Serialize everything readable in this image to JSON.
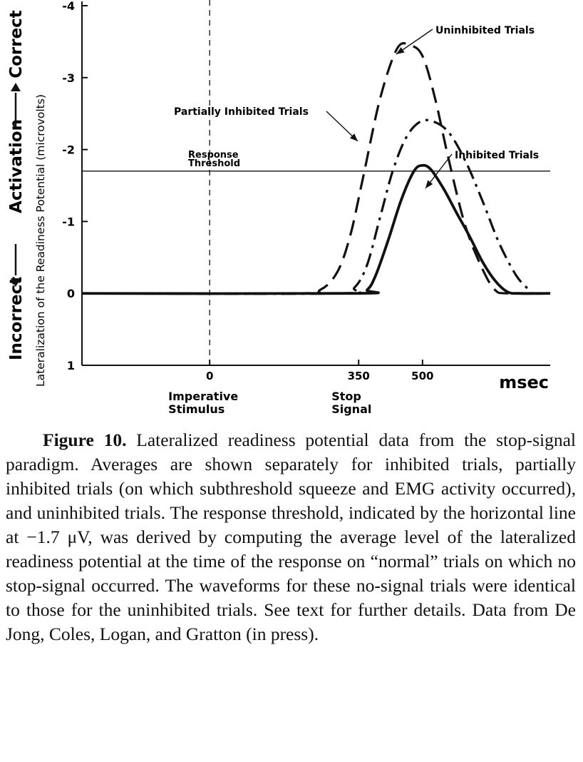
{
  "chart_data": {
    "type": "line",
    "ylabel_outer": {
      "incorrect": "Incorrect",
      "activation": "Activation",
      "correct": "Correct"
    },
    "ylabel": "Lateralization of the Readiness Potential (microvolts)",
    "xunit": "msec",
    "y_ticks": [
      -4,
      -3,
      -2,
      -1,
      0,
      1
    ],
    "y_tick_labels": [
      "-4",
      "-3",
      "-2",
      "-1",
      "0",
      "1"
    ],
    "ylim": [
      1,
      -4
    ],
    "xlim": [
      -300,
      800
    ],
    "x_ticks": [
      0,
      350,
      500
    ],
    "x_tick_labels": [
      "0",
      "350",
      "500"
    ],
    "event_labels": [
      {
        "line1": "Imperative",
        "line2": "Stimulus",
        "x": 0
      },
      {
        "line1": "Stop",
        "line2": "Signal",
        "x": 350
      }
    ],
    "threshold": {
      "value": -1.7,
      "line1": "Response",
      "line2": "Threshold"
    },
    "imperative_marker_x": 0,
    "series": [
      {
        "name": "Uninhibited Trials",
        "style": "dashed",
        "x": [
          -300,
          200,
          260,
          300,
          330,
          360,
          400,
          440,
          470,
          500,
          530,
          560,
          600,
          640,
          670,
          700,
          800
        ],
        "y": [
          0,
          0,
          -0.05,
          -0.3,
          -0.8,
          -1.6,
          -2.7,
          -3.4,
          -3.45,
          -3.3,
          -2.7,
          -1.9,
          -0.95,
          -0.35,
          -0.05,
          0,
          0
        ]
      },
      {
        "name": "Partially Inhibited Trials",
        "style": "dash-dot",
        "x": [
          -300,
          300,
          340,
          370,
          400,
          430,
          460,
          490,
          520,
          560,
          600,
          640,
          680,
          720,
          750,
          760,
          800
        ],
        "y": [
          0,
          0,
          -0.08,
          -0.4,
          -1.05,
          -1.7,
          -2.15,
          -2.37,
          -2.4,
          -2.25,
          -1.85,
          -1.3,
          -0.7,
          -0.25,
          -0.05,
          0,
          0
        ]
      },
      {
        "name": "Inhibited Trials",
        "style": "solid",
        "x": [
          -300,
          340,
          370,
          390,
          420,
          450,
          480,
          500,
          520,
          550,
          580,
          610,
          640,
          670,
          700,
          730,
          800
        ],
        "y": [
          0,
          0,
          -0.05,
          -0.25,
          -0.75,
          -1.3,
          -1.7,
          -1.78,
          -1.72,
          -1.45,
          -1.12,
          -0.8,
          -0.45,
          -0.18,
          -0.02,
          0,
          0
        ]
      }
    ]
  },
  "caption": {
    "figure_label": "Figure 10.",
    "text": " Lateralized readiness potential data from the stop-signal paradigm. Averages are shown separately for inhibited trials, partially inhibited trials (on which subthreshold squeeze and EMG activity occurred), and uninhibited trials. The response threshold, indicated by the horizontal line at −1.7 μV, was derived by computing the average level of the lateralized readiness potential at the time of the response on “normal” trials on which no stop-signal occurred. The waveforms for these no-signal trials were identical to those for the uninhibited trials. See text for further details. Data from De Jong, Coles, Logan, and Gratton (in press)."
  }
}
